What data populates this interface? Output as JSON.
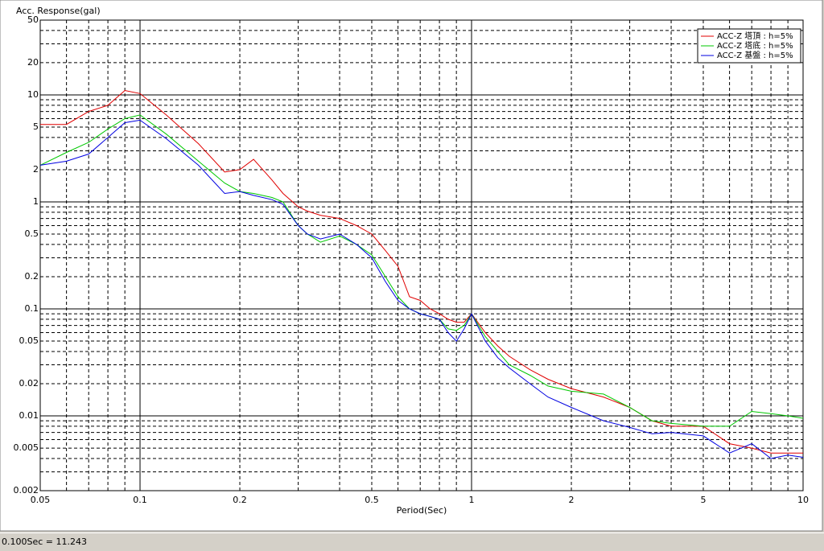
{
  "chart_data": {
    "type": "line",
    "y_label": "Acc. Response(gal)",
    "x_label": "Period(Sec)",
    "x_log": true,
    "y_log": true,
    "grid": true,
    "legend": "upper right",
    "xlim": [
      0.05,
      10
    ],
    "ylim": [
      0.002,
      50
    ],
    "xticks": [
      0.05,
      0.1,
      0.2,
      0.5,
      1,
      2,
      5,
      10
    ],
    "yticks": [
      0.002,
      0.005,
      0.01,
      0.02,
      0.05,
      0.1,
      0.2,
      0.5,
      1,
      2,
      5,
      10,
      20,
      50
    ],
    "x_minor_grid": [
      0.06,
      0.07,
      0.08,
      0.09,
      0.3,
      0.4,
      0.6,
      0.7,
      0.8,
      0.9,
      3,
      4,
      6,
      7,
      8,
      9
    ],
    "y_minor_grid": [
      0.003,
      0.004,
      0.006,
      0.007,
      0.008,
      0.009,
      0.03,
      0.04,
      0.06,
      0.07,
      0.08,
      0.09,
      0.3,
      0.4,
      0.6,
      0.7,
      0.8,
      0.9,
      3,
      4,
      6,
      7,
      8,
      9,
      30,
      40
    ],
    "x": [
      0.05,
      0.06,
      0.07,
      0.08,
      0.09,
      0.1,
      0.12,
      0.15,
      0.18,
      0.2,
      0.22,
      0.25,
      0.27,
      0.3,
      0.32,
      0.35,
      0.4,
      0.45,
      0.5,
      0.55,
      0.6,
      0.65,
      0.7,
      0.75,
      0.8,
      0.85,
      0.9,
      0.95,
      1.0,
      1.1,
      1.2,
      1.3,
      1.5,
      1.7,
      2,
      2.5,
      3,
      3.5,
      4,
      5,
      6,
      7,
      8,
      9,
      10
    ],
    "series": [
      {
        "name": "ACC-Z 塔頂 : h=5%",
        "color": "#e00000",
        "values": [
          5.3,
          5.3,
          7,
          8,
          11,
          10.3,
          6.5,
          3.5,
          1.9,
          2.0,
          2.5,
          1.6,
          1.2,
          0.9,
          0.82,
          0.75,
          0.7,
          0.6,
          0.5,
          0.35,
          0.25,
          0.13,
          0.12,
          0.1,
          0.09,
          0.08,
          0.075,
          0.075,
          0.09,
          0.06,
          0.045,
          0.036,
          0.027,
          0.022,
          0.018,
          0.015,
          0.012,
          0.009,
          0.008,
          0.008,
          0.0055,
          0.005,
          0.0045,
          0.0045,
          0.0045
        ]
      },
      {
        "name": "ACC-Z 塔底 : h=5%",
        "color": "#00c800",
        "values": [
          2.2,
          2.9,
          3.6,
          4.8,
          6,
          6.5,
          4.3,
          2.4,
          1.5,
          1.25,
          1.2,
          1.1,
          1.0,
          0.6,
          0.5,
          0.42,
          0.48,
          0.4,
          0.32,
          0.2,
          0.13,
          0.1,
          0.09,
          0.085,
          0.08,
          0.065,
          0.063,
          0.07,
          0.09,
          0.055,
          0.04,
          0.03,
          0.024,
          0.019,
          0.017,
          0.016,
          0.012,
          0.009,
          0.0085,
          0.008,
          0.008,
          0.011,
          0.0105,
          0.01,
          0.0095
        ]
      },
      {
        "name": "ACC-Z 基盤 : h=5%",
        "color": "#0000e0",
        "values": [
          2.2,
          2.4,
          2.8,
          4,
          5.5,
          5.8,
          3.9,
          2.2,
          1.2,
          1.25,
          1.15,
          1.05,
          0.95,
          0.6,
          0.5,
          0.45,
          0.5,
          0.4,
          0.3,
          0.18,
          0.12,
          0.1,
          0.09,
          0.085,
          0.08,
          0.06,
          0.05,
          0.065,
          0.09,
          0.05,
          0.035,
          0.028,
          0.02,
          0.015,
          0.012,
          0.009,
          0.0078,
          0.0068,
          0.007,
          0.0065,
          0.0045,
          0.0055,
          0.004,
          0.0043,
          0.0041
        ]
      }
    ]
  },
  "status_bar": "0.100Sec = 11.243"
}
